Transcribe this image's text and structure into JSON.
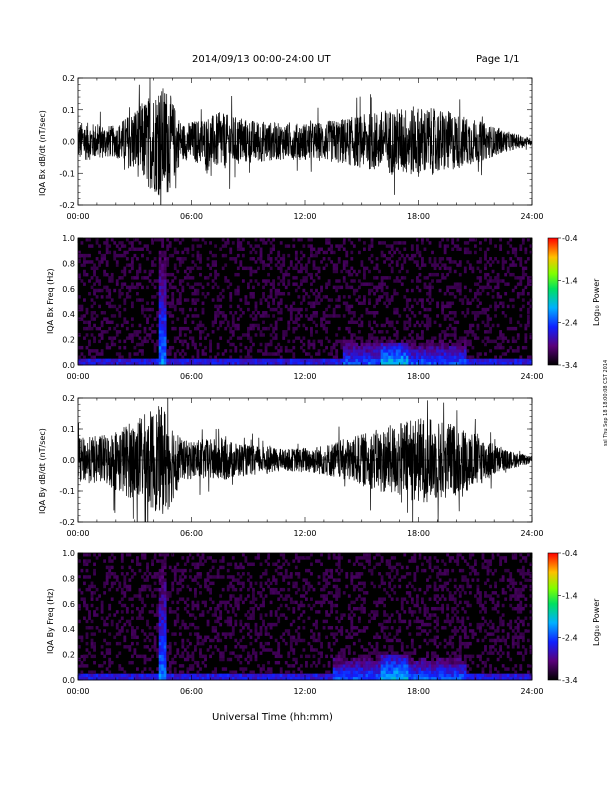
{
  "header": {
    "title": "2014/09/13  00:00-24:00 UT",
    "page": "Page 1/1"
  },
  "footer": {
    "xlabel": "Universal Time (hh:mm)",
    "stamp": "ssl Thu Sep 18 18:00:08 CST 2014"
  },
  "chart_data": [
    {
      "type": "line",
      "ylabel": "IQA Bx dB/dt (nT/sec)",
      "x_ticks": [
        "00:00",
        "06:00",
        "12:00",
        "18:00",
        "24:00"
      ],
      "y_ticks": [
        "-0.2",
        "-0.1",
        "0.0",
        "0.1",
        "0.2"
      ],
      "xlim": [
        0,
        24
      ],
      "ylim": [
        -0.2,
        0.2
      ],
      "x_unit": "hours UT",
      "activity_profile": {
        "hours": [
          0,
          2,
          4.3,
          4.7,
          5.5,
          7.5,
          9,
          11,
          13,
          15,
          16.5,
          18,
          19.5,
          21,
          22.5,
          24
        ],
        "amplitude": [
          0.09,
          0.07,
          0.25,
          0.25,
          0.08,
          0.13,
          0.1,
          0.08,
          0.09,
          0.12,
          0.15,
          0.16,
          0.14,
          0.1,
          0.05,
          0.015
        ]
      }
    },
    {
      "type": "heatmap",
      "ylabel": "IQA Bx Freq (Hz)",
      "x_ticks": [
        "00:00",
        "06:00",
        "12:00",
        "18:00",
        "24:00"
      ],
      "y_ticks": [
        "0.0",
        "0.2",
        "0.4",
        "0.6",
        "0.8",
        "1.0"
      ],
      "xlim": [
        0,
        24
      ],
      "ylim": [
        0,
        1.0
      ],
      "colorbar": {
        "label": "Log₁₀ Power",
        "ticks": [
          "-0.4",
          "-1.4",
          "-2.4",
          "-3.4"
        ],
        "range": [
          -3.4,
          -0.4
        ]
      },
      "features": [
        {
          "kind": "broadband burst",
          "hours": [
            4.3,
            4.7
          ],
          "freq": [
            0,
            1.0
          ],
          "power": -2.2
        },
        {
          "kind": "low-frequency band",
          "hours": [
            14,
            20.5
          ],
          "freq": [
            0,
            0.25
          ],
          "power": -2.3
        },
        {
          "kind": "peak",
          "hours": [
            16,
            17.5
          ],
          "freq": [
            0,
            0.18
          ],
          "power": -1.9
        },
        {
          "kind": "background",
          "hours": [
            0,
            24
          ],
          "freq": [
            0,
            1.0
          ],
          "power": -3.4
        }
      ]
    },
    {
      "type": "line",
      "ylabel": "IQA By dB/dt (nT/sec)",
      "x_ticks": [
        "00:00",
        "06:00",
        "12:00",
        "18:00",
        "24:00"
      ],
      "y_ticks": [
        "-0.2",
        "-0.1",
        "0.0",
        "0.1",
        "0.2"
      ],
      "xlim": [
        0,
        24
      ],
      "ylim": [
        -0.2,
        0.2
      ],
      "x_unit": "hours UT",
      "activity_profile": {
        "hours": [
          0,
          1.5,
          4.3,
          4.7,
          5.5,
          7.5,
          9,
          11,
          13,
          15,
          16.5,
          18,
          19.5,
          21,
          22.5,
          24
        ],
        "amplitude": [
          0.1,
          0.12,
          0.25,
          0.25,
          0.09,
          0.1,
          0.07,
          0.05,
          0.07,
          0.12,
          0.16,
          0.2,
          0.18,
          0.13,
          0.05,
          0.015
        ]
      }
    },
    {
      "type": "heatmap",
      "ylabel": "IQA By Freq (Hz)",
      "x_ticks": [
        "00:00",
        "06:00",
        "12:00",
        "18:00",
        "24:00"
      ],
      "y_ticks": [
        "0.0",
        "0.2",
        "0.4",
        "0.6",
        "0.8",
        "1.0"
      ],
      "xlim": [
        0,
        24
      ],
      "ylim": [
        0,
        1.0
      ],
      "colorbar": {
        "label": "Log₁₀ Power",
        "ticks": [
          "-0.4",
          "-1.4",
          "-2.4",
          "-3.4"
        ],
        "range": [
          -3.4,
          -0.4
        ]
      },
      "features": [
        {
          "kind": "broadband burst",
          "hours": [
            4.3,
            4.7
          ],
          "freq": [
            0,
            1.0
          ],
          "power": -2.2
        },
        {
          "kind": "low-frequency band",
          "hours": [
            13.5,
            20.5
          ],
          "freq": [
            0,
            0.25
          ],
          "power": -2.3
        },
        {
          "kind": "peak",
          "hours": [
            16,
            17.5
          ],
          "freq": [
            0,
            0.2
          ],
          "power": -1.9
        },
        {
          "kind": "background",
          "hours": [
            0,
            24
          ],
          "freq": [
            0,
            1.0
          ],
          "power": -3.4
        }
      ]
    }
  ]
}
